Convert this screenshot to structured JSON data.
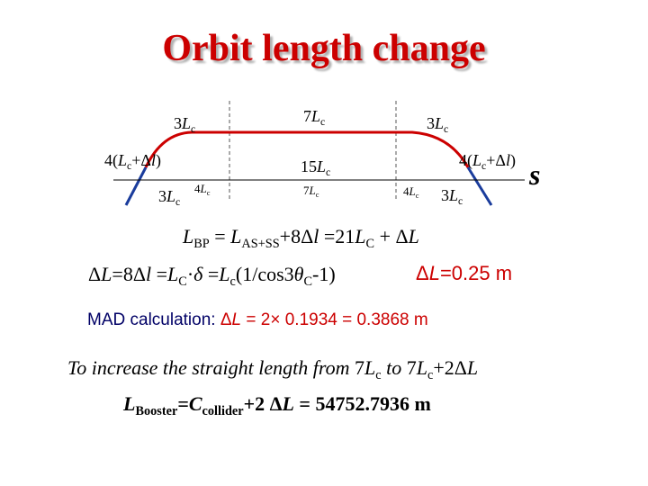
{
  "title": "Orbit length change",
  "diagram": {
    "top_left": "3Lc",
    "top_center": "7Lc",
    "top_right": "3Lc",
    "left_mid": "4(Lc+Δl)",
    "right_mid": "4(Lc+Δl)",
    "center_mid": "15Lc",
    "center_low": "7Lc",
    "bottom_left_a": "3Lc",
    "bottom_left_b": "4Lc",
    "bottom_right_a": "4Lc",
    "bottom_right_b": "3Lc",
    "axis_label": "s"
  },
  "equations": {
    "eq1": "LBP = LAS+SS+8Δl =21LC + ΔL",
    "eq2": "ΔL=8Δl =LC·δ =Lc(1/cos3θC-1)",
    "eq2_result": "ΔL=0.25 m",
    "mad": "MAD calculation: ΔL = 2× 0.1934 = 0.3868 m",
    "note": "To increase the straight length from 7Lc to 7Lc+2ΔL",
    "booster": "LBooster=Ccollider+2 ΔL = 54752.7936 m"
  },
  "colors": {
    "title": "#cc0000",
    "curve": "#cc0000",
    "leg": "#1a3c9c",
    "dashed": "#555555",
    "text_navy": "#000066"
  }
}
